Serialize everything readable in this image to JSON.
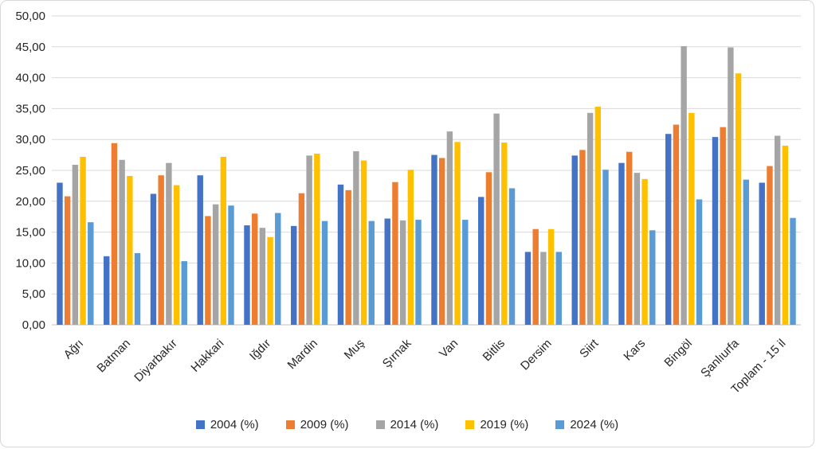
{
  "chart_data": {
    "type": "bar",
    "title": "",
    "xlabel": "",
    "ylabel": "",
    "ylim": [
      0,
      50
    ],
    "y_step": 5,
    "grid": true,
    "legend_position": "bottom",
    "y_tick_labels": [
      "0,00",
      "5,00",
      "10,00",
      "15,00",
      "20,00",
      "25,00",
      "30,00",
      "35,00",
      "40,00",
      "45,00",
      "50,00"
    ],
    "categories": [
      "Ağrı",
      "Batman",
      "Diyarbakır",
      "Hakkari",
      "Iğdır",
      "Mardin",
      "Muş",
      "Şırnak",
      "Van",
      "Bitlis",
      "Dersim",
      "Siirt",
      "Kars",
      "Bingöl",
      "Şanlıurfa",
      "Toplam - 15 il"
    ],
    "series": [
      {
        "name": "2004 (%)",
        "color": "#4472C4",
        "values": [
          23.0,
          11.1,
          21.2,
          24.2,
          16.1,
          16.0,
          22.7,
          17.2,
          27.5,
          20.7,
          11.8,
          27.4,
          26.2,
          30.9,
          30.4,
          23.0
        ]
      },
      {
        "name": "2009 (%)",
        "color": "#ED7D31",
        "values": [
          20.8,
          29.4,
          24.2,
          17.6,
          18.0,
          21.3,
          21.8,
          23.1,
          27.0,
          24.7,
          15.5,
          28.3,
          28.0,
          32.4,
          32.0,
          25.7
        ]
      },
      {
        "name": "2014 (%)",
        "color": "#A5A5A5",
        "values": [
          25.9,
          26.7,
          26.2,
          19.5,
          15.7,
          27.4,
          28.1,
          16.9,
          31.3,
          34.2,
          11.8,
          34.3,
          24.6,
          45.1,
          44.9,
          30.6
        ]
      },
      {
        "name": "2019 (%)",
        "color": "#FFC000",
        "values": [
          27.2,
          24.1,
          22.6,
          27.2,
          14.2,
          27.7,
          26.6,
          25.1,
          29.6,
          29.5,
          15.5,
          35.3,
          23.6,
          34.3,
          40.7,
          29.0
        ]
      },
      {
        "name": "2024 (%)",
        "color": "#5B9BD5",
        "values": [
          16.6,
          11.6,
          10.3,
          19.3,
          18.1,
          16.8,
          16.8,
          17.0,
          17.0,
          22.1,
          11.8,
          25.1,
          15.3,
          20.3,
          23.5,
          17.3
        ]
      }
    ],
    "colors": {
      "gridline": "#D9D9D9",
      "axis_line": "#BFBFBF",
      "text": "#262626",
      "background": "#FFFFFF",
      "frame_border": "#D7D7D7"
    }
  }
}
